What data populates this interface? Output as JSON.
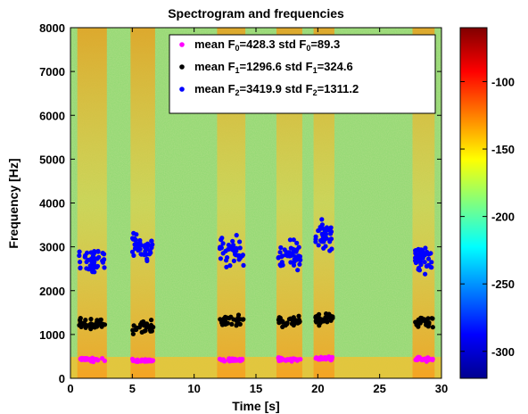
{
  "chart_data": {
    "type": "scatter",
    "title": "Spectrogram and frequencies",
    "xlabel": "Time [s]",
    "ylabel": "Frequency [Hz]",
    "xlim": [
      0,
      30
    ],
    "ylim": [
      0,
      8000
    ],
    "xticks": [
      0,
      5,
      10,
      15,
      20,
      25,
      30
    ],
    "yticks": [
      0,
      1000,
      2000,
      3000,
      4000,
      5000,
      6000,
      7000,
      8000
    ],
    "background": "spectrogram",
    "legend_position": "top-right",
    "colorbar": {
      "range": [
        -320,
        -60
      ],
      "ticks": [
        -100,
        -150,
        -200,
        -250,
        -300
      ],
      "colormap": "jet"
    },
    "segments": [
      {
        "t0": 0.7,
        "t1": 2.8,
        "f0": 430,
        "f1": 1250,
        "f2": 2700
      },
      {
        "t0": 5.0,
        "t1": 6.7,
        "f0": 410,
        "f1": 1150,
        "f2": 3000
      },
      {
        "t0": 12.0,
        "t1": 14.0,
        "f0": 420,
        "f1": 1300,
        "f2": 2900
      },
      {
        "t0": 16.8,
        "t1": 18.6,
        "f0": 430,
        "f1": 1300,
        "f2": 2800
      },
      {
        "t0": 19.8,
        "t1": 21.2,
        "f0": 450,
        "f1": 1350,
        "f2": 3200
      },
      {
        "t0": 27.8,
        "t1": 29.3,
        "f0": 440,
        "f1": 1300,
        "f2": 2700
      }
    ],
    "series": [
      {
        "key": "f0",
        "color": "#ff00ff",
        "label_pre": "mean F",
        "sub": "0",
        "label_mid": "=428.3  std F",
        "sub2": "0",
        "label_post": "=89.3",
        "mean": 428.3,
        "std": 89.3
      },
      {
        "key": "f1",
        "color": "#000000",
        "label_pre": "mean F",
        "sub": "1",
        "label_mid": "=1296.6  std F",
        "sub2": "1",
        "label_post": "=324.6",
        "mean": 1296.6,
        "std": 324.6
      },
      {
        "key": "f2",
        "color": "#0000ff",
        "label_pre": "mean F",
        "sub": "2",
        "label_mid": "=3419.9  std F",
        "sub2": "2",
        "label_post": "=1311.2",
        "mean": 3419.9,
        "std": 1311.2
      }
    ]
  }
}
